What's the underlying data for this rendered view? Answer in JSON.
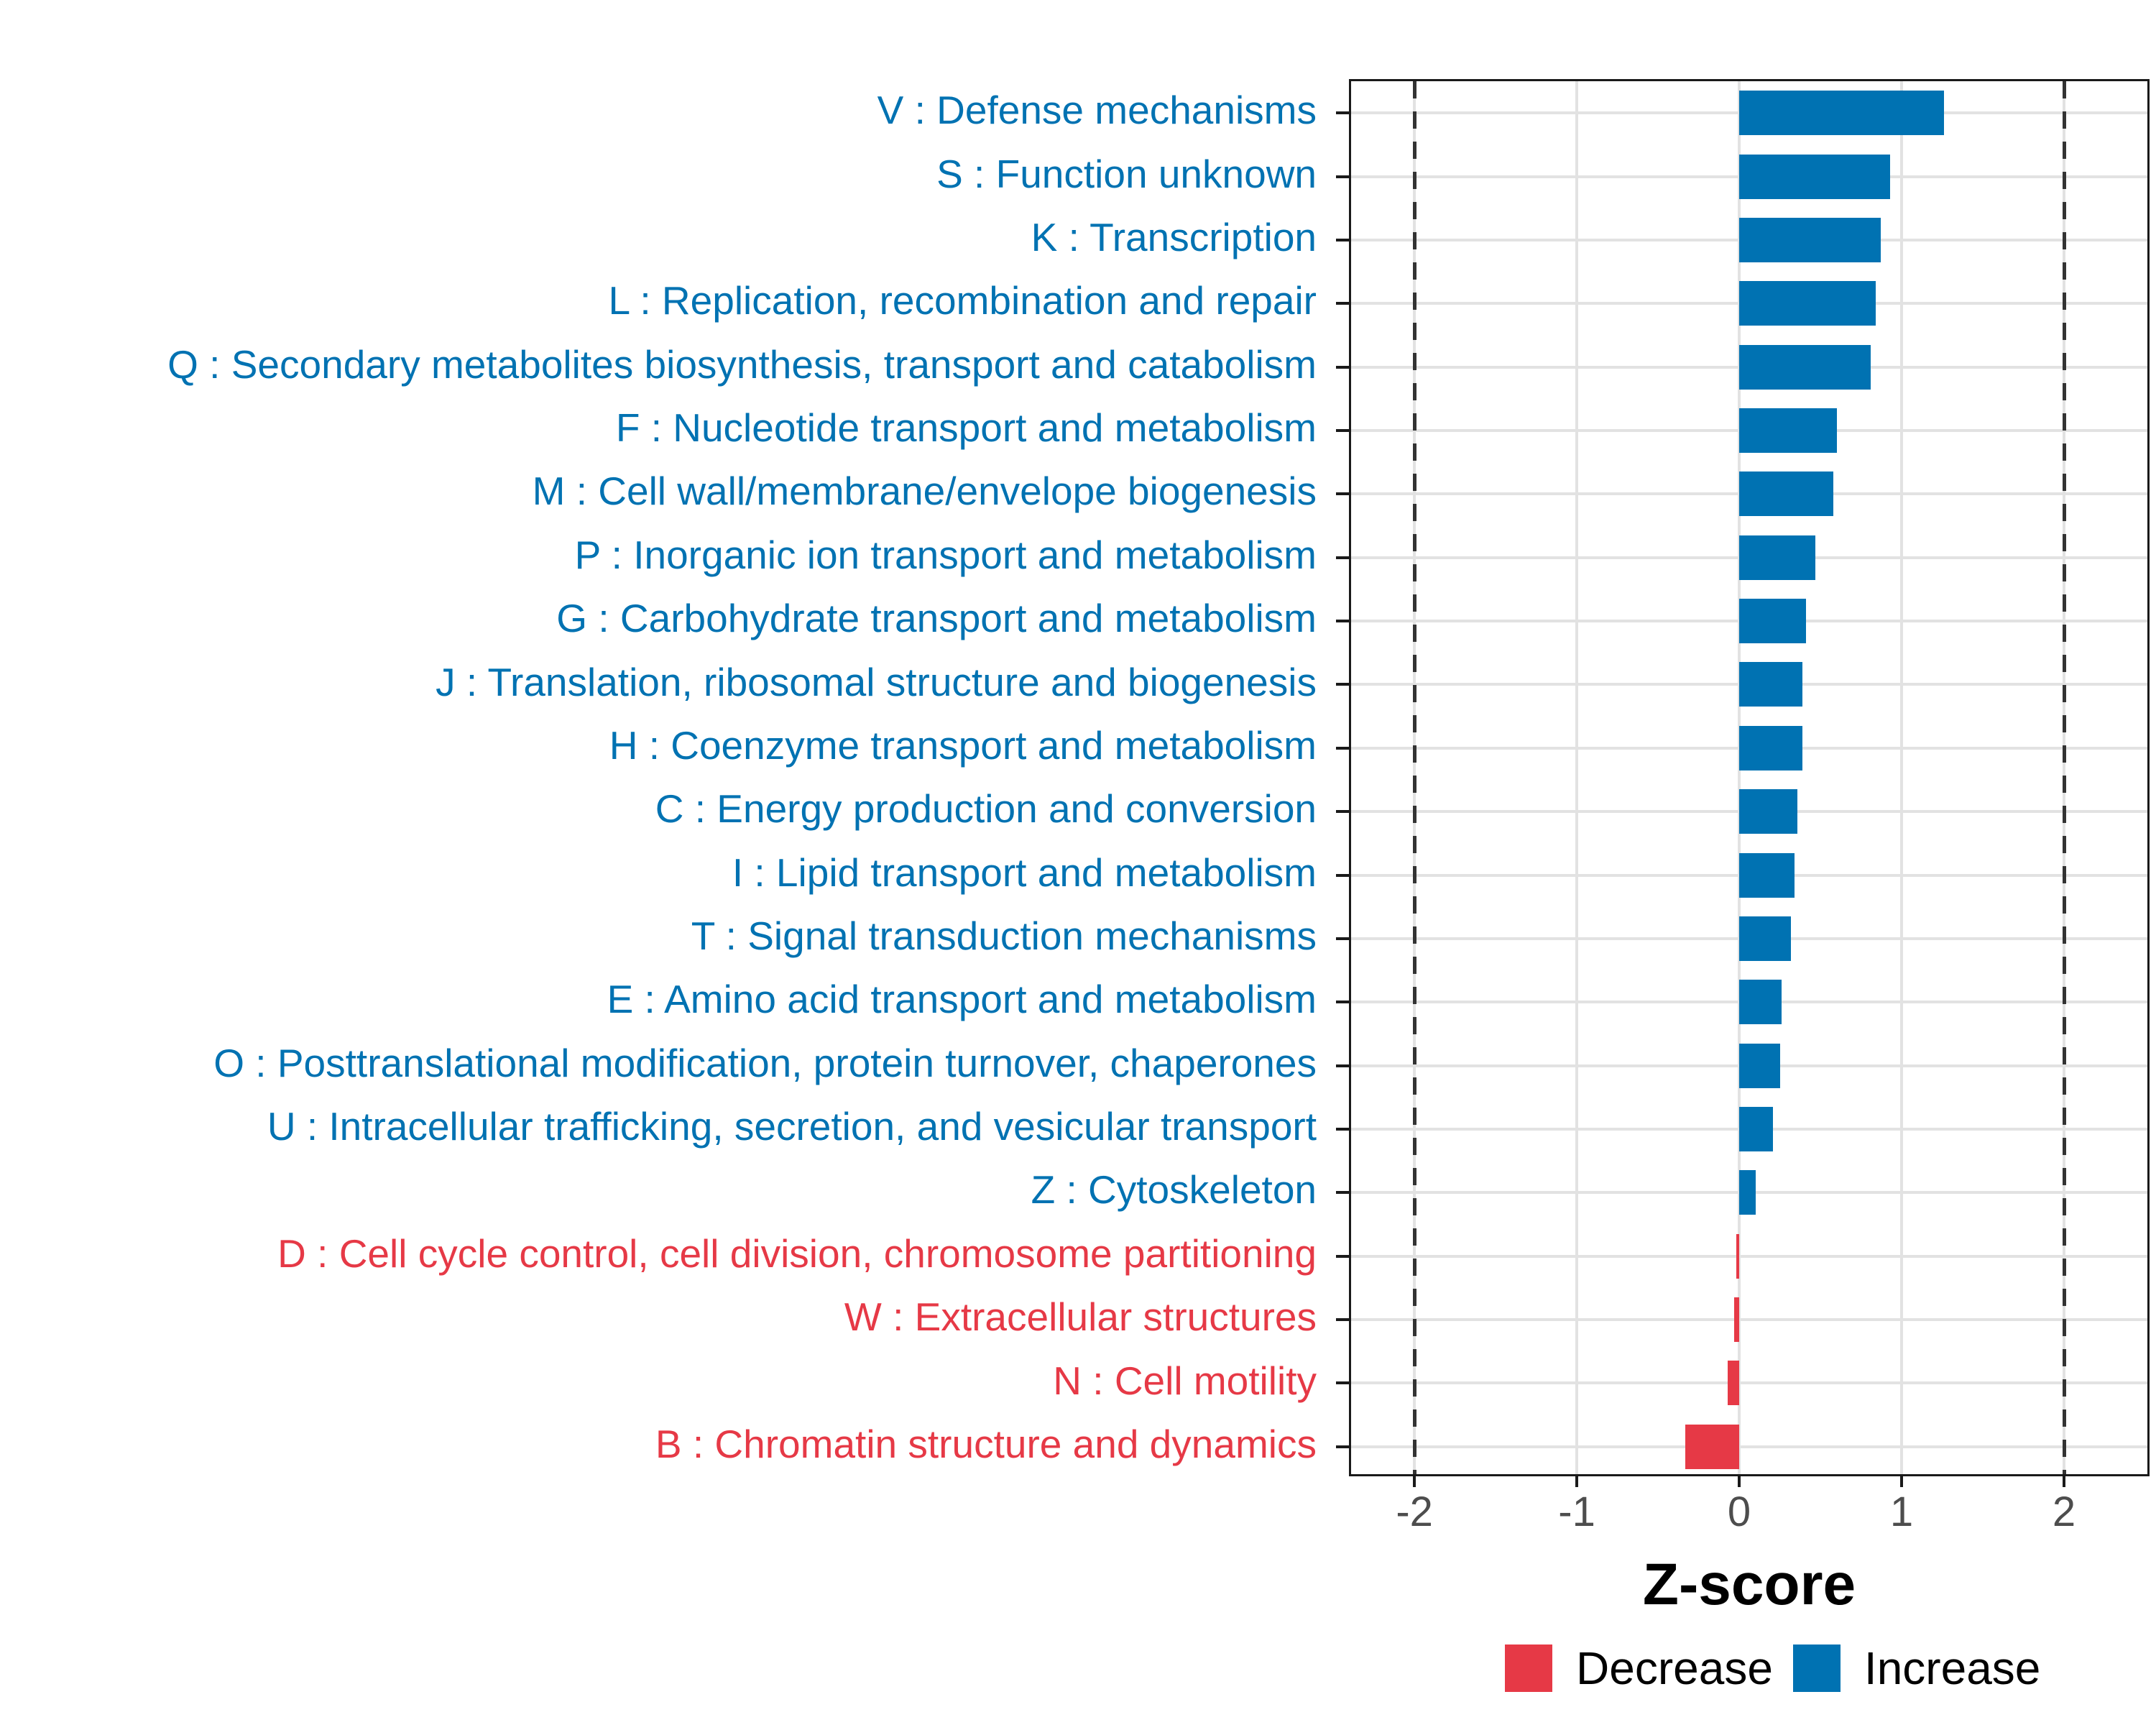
{
  "figure": {
    "x_axis_title": "Z-score",
    "legend": [
      {
        "label": "Decrease",
        "direction": "decrease"
      },
      {
        "label": "Increase",
        "direction": "increase"
      }
    ],
    "colors": {
      "increase": "#0072B2",
      "decrease": "#E63946",
      "gridline": "#E2E2E2",
      "dashed_line": "#333333",
      "axis_text": "#4D4D4D",
      "panel_border": "#1A1A1A"
    }
  },
  "chart_data": {
    "type": "bar",
    "orientation": "horizontal",
    "title": "",
    "xlabel": "Z-score",
    "ylabel": "",
    "xlim": [
      -2.39,
      2.54
    ],
    "x_ticks": [
      -2,
      -1,
      0,
      1,
      2
    ],
    "dashed_reference_lines_x": [
      -2,
      2
    ],
    "grid": "major-only",
    "legend_position": "bottom-right",
    "bars": [
      {
        "code": "V",
        "label": "V : Defense mechanisms",
        "value": 1.26,
        "direction": "increase"
      },
      {
        "code": "S",
        "label": "S : Function unknown",
        "value": 0.93,
        "direction": "increase"
      },
      {
        "code": "K",
        "label": "K : Transcription",
        "value": 0.87,
        "direction": "increase"
      },
      {
        "code": "L",
        "label": "L : Replication, recombination and repair",
        "value": 0.84,
        "direction": "increase"
      },
      {
        "code": "Q",
        "label": "Q : Secondary metabolites biosynthesis, transport and catabolism",
        "value": 0.81,
        "direction": "increase"
      },
      {
        "code": "F",
        "label": "F : Nucleotide transport and metabolism",
        "value": 0.6,
        "direction": "increase"
      },
      {
        "code": "M",
        "label": "M : Cell wall/membrane/envelope biogenesis",
        "value": 0.58,
        "direction": "increase"
      },
      {
        "code": "P",
        "label": "P : Inorganic ion transport and metabolism",
        "value": 0.47,
        "direction": "increase"
      },
      {
        "code": "G",
        "label": "G : Carbohydrate transport and metabolism",
        "value": 0.41,
        "direction": "increase"
      },
      {
        "code": "J",
        "label": "J : Translation, ribosomal structure and biogenesis",
        "value": 0.39,
        "direction": "increase"
      },
      {
        "code": "H",
        "label": "H : Coenzyme transport and metabolism",
        "value": 0.39,
        "direction": "increase"
      },
      {
        "code": "C",
        "label": "C : Energy production and conversion",
        "value": 0.36,
        "direction": "increase"
      },
      {
        "code": "I",
        "label": "I : Lipid transport and metabolism",
        "value": 0.34,
        "direction": "increase"
      },
      {
        "code": "T",
        "label": "T : Signal transduction mechanisms",
        "value": 0.32,
        "direction": "increase"
      },
      {
        "code": "E",
        "label": "E : Amino acid transport and metabolism",
        "value": 0.26,
        "direction": "increase"
      },
      {
        "code": "O",
        "label": "O : Posttranslational modification, protein turnover, chaperones",
        "value": 0.25,
        "direction": "increase"
      },
      {
        "code": "U",
        "label": "U : Intracellular trafficking, secretion, and vesicular transport",
        "value": 0.21,
        "direction": "increase"
      },
      {
        "code": "Z",
        "label": "Z : Cytoskeleton",
        "value": 0.1,
        "direction": "increase"
      },
      {
        "code": "D",
        "label": "D : Cell cycle control, cell division, chromosome partitioning",
        "value": -0.02,
        "direction": "decrease"
      },
      {
        "code": "W",
        "label": "W : Extracellular structures",
        "value": -0.03,
        "direction": "decrease"
      },
      {
        "code": "N",
        "label": "N : Cell motility",
        "value": -0.07,
        "direction": "decrease"
      },
      {
        "code": "B",
        "label": "B : Chromatin structure and dynamics",
        "value": -0.33,
        "direction": "decrease"
      }
    ]
  }
}
